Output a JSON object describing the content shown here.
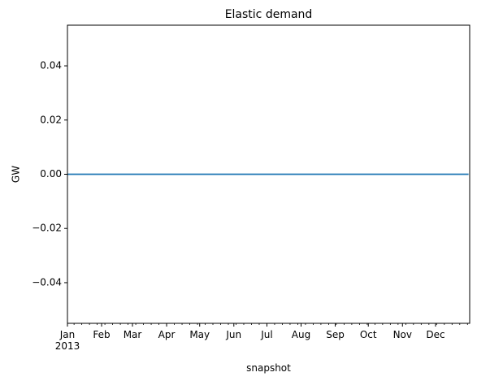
{
  "chart_data": {
    "type": "line",
    "title": "Elastic demand",
    "xlabel": "snapshot",
    "ylabel": "GW",
    "xlim": [
      "2013-01-01",
      "2013-12-31"
    ],
    "ylim": [
      -0.055,
      0.055
    ],
    "y_ticks": [
      {
        "value": -0.04,
        "label": "−0.04"
      },
      {
        "value": -0.02,
        "label": "−0.02"
      },
      {
        "value": 0.0,
        "label": "0.00"
      },
      {
        "value": 0.02,
        "label": "0.02"
      },
      {
        "value": 0.04,
        "label": "0.04"
      }
    ],
    "x_ticks": [
      {
        "value": "2013-01-01",
        "label": "Jan",
        "sublabel": "2013"
      },
      {
        "value": "2013-02-01",
        "label": "Feb"
      },
      {
        "value": "2013-03-01",
        "label": "Mar"
      },
      {
        "value": "2013-04-01",
        "label": "Apr"
      },
      {
        "value": "2013-05-01",
        "label": "May"
      },
      {
        "value": "2013-06-01",
        "label": "Jun"
      },
      {
        "value": "2013-07-01",
        "label": "Jul"
      },
      {
        "value": "2013-08-01",
        "label": "Aug"
      },
      {
        "value": "2013-09-01",
        "label": "Sep"
      },
      {
        "value": "2013-10-01",
        "label": "Oct"
      },
      {
        "value": "2013-11-01",
        "label": "Nov"
      },
      {
        "value": "2013-12-01",
        "label": "Dec"
      }
    ],
    "series": [
      {
        "color": "#1f77b4",
        "x": [
          "2013-01-01",
          "2013-12-31"
        ],
        "y": [
          0.0,
          0.0
        ]
      }
    ],
    "grid": false,
    "legend": "none"
  }
}
